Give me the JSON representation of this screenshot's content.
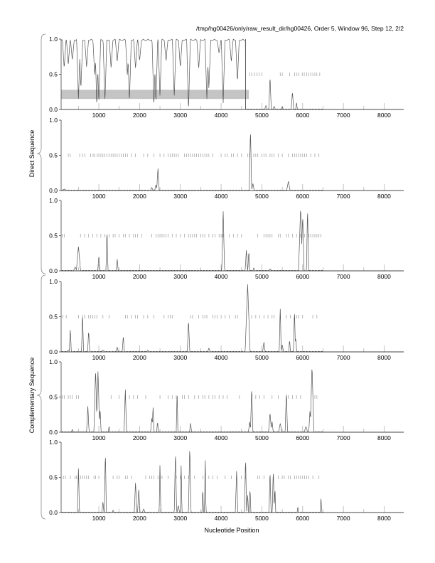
{
  "header": {
    "title": "/tmp/hg00426/only/raw_result_dir/hg00426, Order 5, Window 96, Step 12, 2/2"
  },
  "labels": {
    "direct": "Direct Sequence",
    "complementary": "Complementary Sequence",
    "xlabel": "Nucleotide Position"
  },
  "chart_data": {
    "type": "line",
    "title": "/tmp/hg00426/only/raw_result_dir/hg00426, Order 5, Window 96, Step 12, 2/2",
    "xlabel": "Nucleotide Position",
    "xlim": [
      75,
      8480
    ],
    "ylim": [
      0,
      1
    ],
    "x_ticks": [
      "1000",
      "2000",
      "3000",
      "4000",
      "5000",
      "6000",
      "7000",
      "8000"
    ],
    "y_ticks": [
      "0.0",
      "0.5",
      "1.0"
    ],
    "panels": [
      {
        "name": "direct-frame-1",
        "group": "Direct Sequence",
        "mode": "dips",
        "high_until": 4600,
        "dips": [
          [
            150,
            0.6
          ],
          [
            250,
            0.65
          ],
          [
            350,
            0.7
          ],
          [
            500,
            0.15
          ],
          [
            560,
            0.3
          ],
          [
            700,
            0.6
          ],
          [
            900,
            0.5
          ],
          [
            950,
            0.05
          ],
          [
            1000,
            0.1
          ],
          [
            1150,
            0.1
          ],
          [
            1300,
            0.6
          ],
          [
            1450,
            0.7
          ],
          [
            1700,
            0.5
          ],
          [
            1750,
            0.1
          ],
          [
            1900,
            0.6
          ],
          [
            2000,
            0.7
          ],
          [
            2350,
            0.05
          ],
          [
            2400,
            0.1
          ],
          [
            2500,
            0.2
          ],
          [
            2650,
            0.7
          ],
          [
            2850,
            0.2
          ],
          [
            3000,
            0.6
          ],
          [
            3200,
            0.0
          ],
          [
            3450,
            0.6
          ],
          [
            3650,
            0.15
          ],
          [
            3700,
            0.3
          ],
          [
            3950,
            0.8
          ],
          [
            4050,
            0.08
          ],
          [
            4250,
            0.7
          ],
          [
            4400,
            0.4
          ]
        ],
        "peaks": [
          [
            5100,
            0.05,
            30
          ],
          [
            5200,
            0.47,
            30
          ],
          [
            5300,
            0.04,
            30
          ],
          [
            5500,
            0.04,
            20
          ],
          [
            5750,
            0.25,
            30
          ],
          [
            5850,
            0.1,
            20
          ]
        ],
        "highlight": {
          "x": [
            75,
            4680
          ],
          "y": [
            0.15,
            0.28
          ]
        },
        "orf_ticks": [
          4700,
          4750,
          4820,
          4880,
          4930,
          5000,
          5450,
          5500,
          5680,
          5800,
          5850,
          5900,
          5990,
          6040,
          6100,
          6150,
          6200,
          6250,
          6300,
          6350,
          6420
        ]
      },
      {
        "name": "direct-frame-2",
        "group": "Direct Sequence",
        "mode": "peaks",
        "peaks": [
          [
            150,
            0.02,
            40
          ],
          [
            2300,
            0.04,
            30
          ],
          [
            2400,
            0.08,
            30
          ],
          [
            2450,
            0.32,
            30
          ],
          [
            4720,
            0.88,
            30
          ],
          [
            4780,
            0.1,
            30
          ],
          [
            5650,
            0.13,
            40
          ]
        ],
        "orf_ticks": [
          250,
          300,
          530,
          600,
          660,
          800,
          860,
          900,
          960,
          1000,
          1050,
          1100,
          1150,
          1200,
          1250,
          1300,
          1350,
          1400,
          1450,
          1500,
          1550,
          1600,
          1650,
          1700,
          1800,
          1900,
          2100,
          2200,
          2350,
          2500,
          2600,
          2700,
          2750,
          2800,
          2850,
          2900,
          2950,
          3100,
          3150,
          3200,
          3250,
          3300,
          3350,
          3400,
          3450,
          3500,
          3550,
          3600,
          3650,
          3700,
          3800,
          4000,
          4100,
          4150,
          4250,
          4300,
          4400,
          4500,
          4650,
          4700,
          4800,
          4850,
          4900,
          5000,
          5050,
          5100,
          5200,
          5250,
          5300,
          5400,
          5500,
          5650,
          5750,
          5800,
          5850,
          5900,
          5950,
          6000,
          6050,
          6100,
          6200,
          6300,
          6400
        ]
      },
      {
        "name": "direct-frame-3",
        "group": "Direct Sequence",
        "mode": "peaks",
        "peaks": [
          [
            420,
            0.05,
            40
          ],
          [
            500,
            0.35,
            50
          ],
          [
            1000,
            0.22,
            25
          ],
          [
            1200,
            0.58,
            25
          ],
          [
            1450,
            0.17,
            25
          ],
          [
            4050,
            0.87,
            35
          ],
          [
            4620,
            0.3,
            30
          ],
          [
            4680,
            0.28,
            25
          ],
          [
            4800,
            0.04,
            20
          ],
          [
            5200,
            0.03,
            30
          ],
          [
            5950,
            0.9,
            50
          ],
          [
            6000,
            0.8,
            35
          ],
          [
            6120,
            0.92,
            25
          ]
        ],
        "orf_ticks": [
          100,
          150,
          550,
          650,
          750,
          850,
          950,
          1050,
          1150,
          1250,
          1350,
          1400,
          1500,
          1600,
          1650,
          1750,
          1850,
          1900,
          1950,
          2050,
          2300,
          2400,
          2450,
          2500,
          2550,
          2600,
          2650,
          2700,
          2800,
          2900,
          3000,
          3100,
          3200,
          3250,
          3300,
          3350,
          3400,
          3500,
          3550,
          3600,
          3700,
          3800,
          3850,
          3950,
          4000,
          4050,
          4200,
          4300,
          4400,
          4500,
          4900,
          5050,
          5100,
          5150,
          5200,
          5250,
          5400,
          5450,
          5600,
          5650,
          5750,
          5850,
          5950,
          6050,
          6150,
          6200,
          6250,
          6300,
          6350,
          6400,
          6450
        ]
      },
      {
        "name": "complementary-frame-1",
        "group": "Complementary Sequence",
        "mode": "peaks",
        "peaks": [
          [
            250,
            0.02,
            40
          ],
          [
            300,
            0.32,
            25
          ],
          [
            600,
            0.55,
            25
          ],
          [
            750,
            0.3,
            25
          ],
          [
            1100,
            0.02,
            40
          ],
          [
            1450,
            0.07,
            25
          ],
          [
            1600,
            0.23,
            25
          ],
          [
            2200,
            0.02,
            30
          ],
          [
            3200,
            0.45,
            30
          ],
          [
            3700,
            0.05,
            30
          ],
          [
            4650,
            0.97,
            60
          ],
          [
            5050,
            0.14,
            30
          ],
          [
            5450,
            0.63,
            25
          ],
          [
            5500,
            0.1,
            30
          ],
          [
            5680,
            0.17,
            20
          ],
          [
            5800,
            0.6,
            25
          ],
          [
            5830,
            0.2,
            25
          ]
        ],
        "orf_ticks": [
          120,
          200,
          500,
          600,
          650,
          750,
          800,
          850,
          900,
          950,
          1100,
          1250,
          1650,
          1700,
          1800,
          1900,
          1950,
          2100,
          2200,
          2350,
          2600,
          2700,
          2750,
          2800,
          3250,
          3300,
          3450,
          3550,
          3600,
          3650,
          3800,
          3850,
          3900,
          4000,
          4100,
          4200,
          4350,
          4400,
          4750,
          4850,
          4950,
          5050,
          5150,
          5250,
          5300,
          5450,
          5600,
          5700,
          5850,
          5900,
          6000,
          6250,
          6350
        ]
      },
      {
        "name": "complementary-frame-2",
        "group": "Complementary Sequence",
        "mode": "peaks",
        "peaks": [
          [
            350,
            0.04,
            20
          ],
          [
            730,
            0.38,
            30
          ],
          [
            920,
            0.9,
            40
          ],
          [
            980,
            0.88,
            40
          ],
          [
            1030,
            0.34,
            25
          ],
          [
            1250,
            0.08,
            20
          ],
          [
            1650,
            0.62,
            30
          ],
          [
            2300,
            0.2,
            30
          ],
          [
            2330,
            0.36,
            25
          ],
          [
            2440,
            0.15,
            20
          ],
          [
            2920,
            0.6,
            20
          ],
          [
            3250,
            0.13,
            25
          ],
          [
            4700,
            0.15,
            30
          ],
          [
            4750,
            0.64,
            30
          ],
          [
            5200,
            0.28,
            35
          ],
          [
            5250,
            0.15,
            30
          ],
          [
            5450,
            0.12,
            40
          ],
          [
            5600,
            0.58,
            30
          ],
          [
            6080,
            0.08,
            40
          ],
          [
            6180,
            0.3,
            30
          ],
          [
            6230,
            0.95,
            45
          ]
        ],
        "orf_ticks": [
          100,
          150,
          250,
          300,
          350,
          450,
          500,
          1300,
          1500,
          1650,
          1750,
          1850,
          1950,
          2150,
          2500,
          2700,
          2800,
          2900,
          3050,
          3100,
          3200,
          3350,
          3450,
          3550,
          3600,
          3700,
          3800,
          3850,
          3950,
          4050,
          4150,
          4450,
          4850,
          4950,
          5050,
          5250,
          5400,
          5650,
          5750,
          5850,
          5950,
          6300,
          6350
        ]
      },
      {
        "name": "complementary-frame-3",
        "group": "Complementary Sequence",
        "mode": "peaks",
        "peaks": [
          [
            500,
            0.65,
            25
          ],
          [
            1100,
            0.15,
            25
          ],
          [
            1160,
            0.88,
            25
          ],
          [
            1350,
            0.03,
            20
          ],
          [
            1900,
            0.43,
            30
          ],
          [
            1980,
            0.33,
            30
          ],
          [
            2100,
            0.05,
            30
          ],
          [
            2500,
            0.7,
            20
          ],
          [
            2880,
            0.88,
            30
          ],
          [
            2950,
            0.1,
            30
          ],
          [
            3020,
            0.7,
            20
          ],
          [
            3230,
            0.96,
            30
          ],
          [
            3550,
            0.34,
            20
          ],
          [
            3610,
            0.78,
            20
          ],
          [
            4380,
            0.6,
            30
          ],
          [
            4600,
            0.8,
            25
          ],
          [
            4650,
            0.25,
            25
          ],
          [
            4710,
            0.35,
            20
          ],
          [
            5200,
            0.6,
            25
          ],
          [
            5280,
            0.62,
            25
          ],
          [
            5320,
            0.35,
            20
          ],
          [
            5880,
            0.08,
            15
          ],
          [
            6450,
            0.2,
            20
          ]
        ],
        "orf_ticks": [
          130,
          180,
          300,
          420,
          450,
          550,
          600,
          650,
          700,
          750,
          880,
          920,
          1000,
          1150,
          1350,
          1450,
          1500,
          1650,
          1700,
          1800,
          2150,
          2250,
          2300,
          2350,
          2450,
          2550,
          2700,
          2900,
          3000,
          3100,
          3200,
          3350,
          3550,
          3700,
          3800,
          3900,
          4100,
          4250,
          4500,
          4600,
          4900,
          4950,
          5050,
          5200,
          5400,
          5500,
          5550,
          5650,
          5700,
          5800,
          5850,
          5900,
          5950,
          6000,
          6050,
          6100,
          6150,
          6250,
          6400
        ]
      }
    ]
  }
}
